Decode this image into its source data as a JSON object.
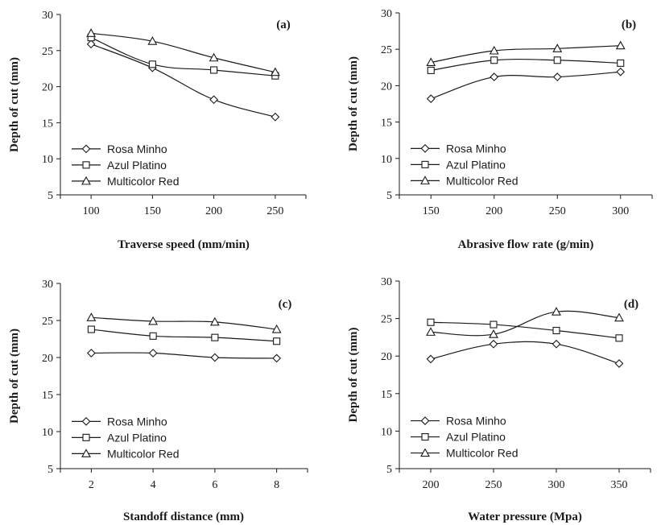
{
  "chart_data": [
    {
      "type": "line",
      "panel_label": "(a)",
      "xlabel": "Traverse speed (mm/min)",
      "ylabel": "Depth of cut (mm)",
      "x": [
        100,
        150,
        200,
        250
      ],
      "x_ticks": [
        "100",
        "150",
        "200",
        "250"
      ],
      "xlim": [
        75,
        275
      ],
      "ylim": [
        5,
        30
      ],
      "y_ticks": [
        "5",
        "10",
        "15",
        "20",
        "25",
        "30"
      ],
      "legend_position": "bottom-left",
      "series": [
        {
          "name": "Rosa Minho",
          "marker": "diamond",
          "values": [
            25.9,
            22.6,
            18.2,
            15.8
          ]
        },
        {
          "name": "Azul Platino",
          "marker": "square",
          "values": [
            26.8,
            23.1,
            22.3,
            21.5
          ]
        },
        {
          "name": "Multicolor Red",
          "marker": "triangle",
          "values": [
            27.4,
            26.3,
            24.0,
            22.0
          ]
        }
      ]
    },
    {
      "type": "line",
      "panel_label": "(b)",
      "xlabel": "Abrasive flow rate (g/min)",
      "ylabel": "Depth of cut (mm)",
      "x": [
        150,
        200,
        250,
        300
      ],
      "x_ticks": [
        "150",
        "200",
        "250",
        "300"
      ],
      "xlim": [
        125,
        325
      ],
      "ylim": [
        5,
        30
      ],
      "y_ticks": [
        "5",
        "10",
        "15",
        "20",
        "25",
        "30"
      ],
      "legend_position": "bottom-left",
      "series": [
        {
          "name": "Rosa Minho",
          "marker": "diamond",
          "values": [
            18.2,
            21.2,
            21.2,
            21.9
          ]
        },
        {
          "name": "Azul Platino",
          "marker": "square",
          "values": [
            22.1,
            23.5,
            23.5,
            23.1
          ]
        },
        {
          "name": "Multicolor Red",
          "marker": "triangle",
          "values": [
            23.2,
            24.8,
            25.1,
            25.5
          ]
        }
      ]
    },
    {
      "type": "line",
      "panel_label": "(c)",
      "xlabel": "Standoff distance (mm)",
      "ylabel": "Depth of cut (mm)",
      "x": [
        2,
        4,
        6,
        8
      ],
      "x_ticks": [
        "2",
        "4",
        "6",
        "8"
      ],
      "xlim": [
        1,
        9
      ],
      "ylim": [
        5,
        30
      ],
      "y_ticks": [
        "5",
        "10",
        "15",
        "20",
        "25",
        "30"
      ],
      "legend_position": "bottom-left",
      "series": [
        {
          "name": "Rosa Minho",
          "marker": "diamond",
          "values": [
            20.6,
            20.6,
            20.0,
            19.9
          ]
        },
        {
          "name": "Azul Platino",
          "marker": "square",
          "values": [
            23.8,
            22.9,
            22.7,
            22.2
          ]
        },
        {
          "name": "Multicolor Red",
          "marker": "triangle",
          "values": [
            25.4,
            24.9,
            24.8,
            23.8
          ]
        }
      ]
    },
    {
      "type": "line",
      "panel_label": "(d)",
      "xlabel": "Water pressure (Mpa)",
      "ylabel": "Depth of cut (mm)",
      "x": [
        200,
        250,
        300,
        350
      ],
      "x_ticks": [
        "200",
        "250",
        "300",
        "350"
      ],
      "xlim": [
        175,
        375
      ],
      "ylim": [
        5,
        30
      ],
      "y_ticks": [
        "5",
        "10",
        "15",
        "20",
        "25",
        "30"
      ],
      "legend_position": "bottom-left",
      "series": [
        {
          "name": "Rosa Minho",
          "marker": "diamond",
          "values": [
            19.6,
            21.6,
            21.6,
            19.0
          ]
        },
        {
          "name": "Azul Platino",
          "marker": "square",
          "values": [
            24.5,
            24.2,
            23.4,
            22.4
          ]
        },
        {
          "name": "Multicolor Red",
          "marker": "triangle",
          "values": [
            23.2,
            22.9,
            25.9,
            25.1
          ]
        }
      ]
    }
  ]
}
